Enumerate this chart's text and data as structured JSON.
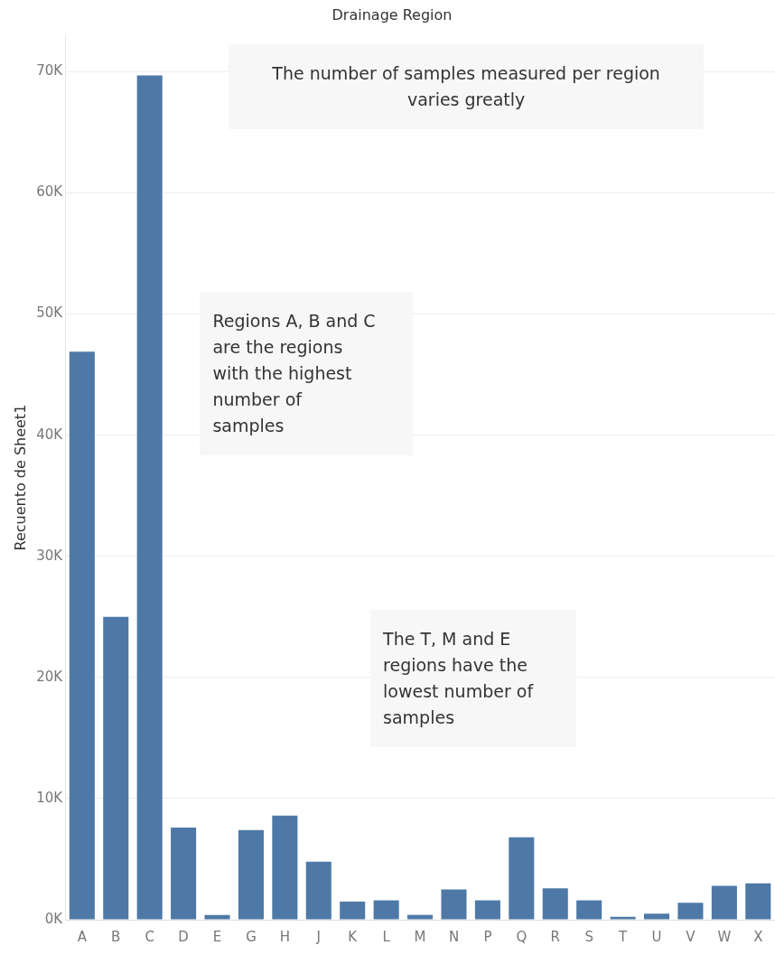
{
  "chart_data": {
    "type": "bar",
    "title": "Drainage Region",
    "ylabel": "Recuento de Sheet1",
    "categories": [
      "A",
      "B",
      "C",
      "D",
      "E",
      "G",
      "H",
      "J",
      "K",
      "L",
      "M",
      "N",
      "P",
      "Q",
      "R",
      "S",
      "T",
      "U",
      "V",
      "W",
      "X"
    ],
    "values": [
      46900,
      25000,
      69700,
      7600,
      400,
      7400,
      8600,
      4800,
      1500,
      1600,
      400,
      2500,
      1600,
      6800,
      2600,
      1600,
      240,
      500,
      1400,
      2800,
      3000
    ],
    "color": "#4e79a7",
    "ylim": [
      0,
      73000
    ],
    "yticks": [
      {
        "value": 0,
        "label": "0K"
      },
      {
        "value": 10000,
        "label": "10K"
      },
      {
        "value": 20000,
        "label": "20K"
      },
      {
        "value": 30000,
        "label": "30K"
      },
      {
        "value": 40000,
        "label": "40K"
      },
      {
        "value": 50000,
        "label": "50K"
      },
      {
        "value": 60000,
        "label": "60K"
      },
      {
        "value": 70000,
        "label": "70K"
      }
    ],
    "grid": "y",
    "annotations": [
      "The number of samples measured per region\nvaries greatly",
      "Regions A, B and C\nare the regions\nwith the highest\nnumber of\nsamples",
      "The T, M and E\nregions have the\nlowest number of\nsamples"
    ]
  }
}
